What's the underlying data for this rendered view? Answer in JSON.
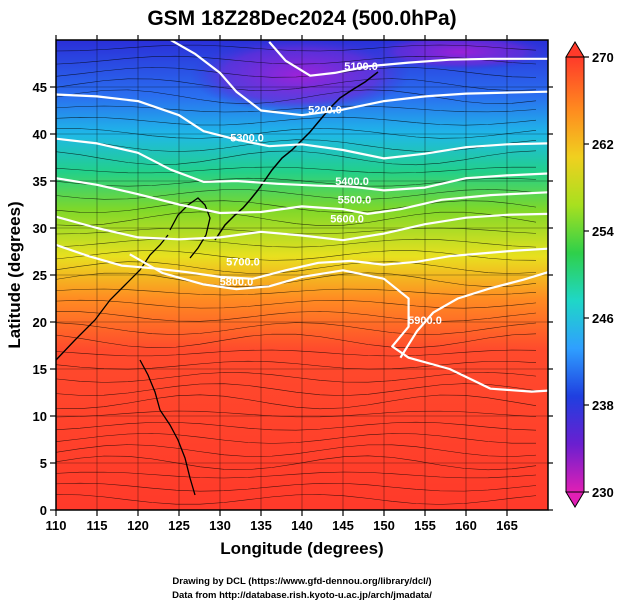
{
  "chart_data": {
    "type": "heatmap",
    "title": "GSM 18Z28Dec2024 (500.0hPa)",
    "xlabel": "Longitude (degrees)",
    "ylabel": "Latitude  (degrees)",
    "xlim": [
      110,
      170
    ],
    "ylim": [
      0,
      50
    ],
    "x_ticks": [
      110,
      115,
      120,
      125,
      130,
      135,
      140,
      145,
      150,
      155,
      160,
      165
    ],
    "y_ticks": [
      0,
      5,
      10,
      15,
      20,
      25,
      30,
      35,
      40,
      45
    ],
    "grid": true,
    "colorbar": {
      "min": 230,
      "max": 270,
      "ticks": [
        230,
        238,
        246,
        254,
        262,
        270
      ],
      "colors": [
        "#e01fb4",
        "#6a1fd0",
        "#1f3fe0",
        "#2f9fff",
        "#1fd7c7",
        "#2fd04a",
        "#a8e01f",
        "#f0d01f",
        "#ff8a1f",
        "#ff3a2a"
      ]
    },
    "contours": [
      {
        "label": "5100.0",
        "points": [
          [
            136,
            49.8
          ],
          [
            138,
            47.8
          ],
          [
            141,
            46.2
          ],
          [
            144,
            46.5
          ],
          [
            148,
            47.2
          ],
          [
            153,
            47.6
          ],
          [
            158,
            47.9
          ],
          [
            163,
            48.0
          ],
          [
            170,
            48.0
          ]
        ]
      },
      {
        "label": "5200.0",
        "points": [
          [
            124,
            50
          ],
          [
            127,
            48.5
          ],
          [
            130,
            46.5
          ],
          [
            132,
            44.5
          ],
          [
            135,
            42.5
          ],
          [
            140,
            42.0
          ],
          [
            145,
            42.6
          ],
          [
            150,
            43.5
          ],
          [
            155,
            44.0
          ],
          [
            160,
            44.3
          ],
          [
            165,
            44.4
          ],
          [
            170,
            44.5
          ]
        ]
      },
      {
        "label": "5300.0",
        "points": [
          [
            110,
            44.2
          ],
          [
            115,
            44.0
          ],
          [
            120,
            43.5
          ],
          [
            125,
            42.0
          ],
          [
            128,
            40.3
          ],
          [
            132,
            39.4
          ],
          [
            136,
            38.7
          ],
          [
            140,
            38.9
          ],
          [
            145,
            38.3
          ],
          [
            150,
            37.4
          ],
          [
            155,
            37.9
          ],
          [
            160,
            38.6
          ],
          [
            165,
            38.9
          ],
          [
            170,
            39.0
          ]
        ]
      },
      {
        "label": "5400.0",
        "points": [
          [
            110,
            39.5
          ],
          [
            115,
            39.0
          ],
          [
            120,
            38.0
          ],
          [
            124,
            36.2
          ],
          [
            128,
            34.9
          ],
          [
            132,
            35.0
          ],
          [
            137,
            34.7
          ],
          [
            142,
            34.5
          ],
          [
            146,
            34.4
          ],
          [
            150,
            34.0
          ],
          [
            155,
            34.3
          ],
          [
            160,
            35.3
          ],
          [
            165,
            35.6
          ],
          [
            170,
            35.8
          ]
        ]
      },
      {
        "label": "5500.0",
        "points": [
          [
            110,
            35.3
          ],
          [
            115,
            34.6
          ],
          [
            120,
            33.6
          ],
          [
            125,
            32.5
          ],
          [
            130,
            31.6
          ],
          [
            135,
            31.7
          ],
          [
            140,
            32.3
          ],
          [
            145,
            32.0
          ],
          [
            148,
            31.5
          ],
          [
            152,
            32.0
          ],
          [
            157,
            33.0
          ],
          [
            163,
            33.5
          ],
          [
            170,
            33.8
          ]
        ]
      },
      {
        "label": "5600.0",
        "points": [
          [
            110,
            31.2
          ],
          [
            115,
            30.0
          ],
          [
            120,
            29.0
          ],
          [
            125,
            28.8
          ],
          [
            130,
            29.0
          ],
          [
            135,
            29.6
          ],
          [
            140,
            29.2
          ],
          [
            145,
            28.7
          ],
          [
            150,
            29.4
          ],
          [
            155,
            30.4
          ],
          [
            160,
            31.1
          ],
          [
            165,
            31.4
          ],
          [
            170,
            31.5
          ]
        ]
      },
      {
        "label": "5700.0",
        "points": [
          [
            110,
            28.2
          ],
          [
            114,
            27.0
          ],
          [
            118,
            26.0
          ],
          [
            122,
            25.7
          ],
          [
            126,
            25.3
          ],
          [
            130,
            24.8
          ],
          [
            134,
            24.6
          ],
          [
            138,
            25.5
          ],
          [
            142,
            26.3
          ],
          [
            146,
            26.5
          ],
          [
            150,
            26.1
          ],
          [
            154,
            26.4
          ],
          [
            158,
            27.0
          ],
          [
            162,
            27.3
          ],
          [
            166,
            27.6
          ],
          [
            170,
            27.8
          ]
        ]
      },
      {
        "label": "5800.0",
        "points": [
          [
            119,
            27.2
          ],
          [
            123,
            25.2
          ],
          [
            128,
            24.0
          ],
          [
            132,
            23.5
          ],
          [
            136,
            23.8
          ],
          [
            140,
            24.8
          ],
          [
            145,
            25.5
          ],
          [
            150,
            24.6
          ],
          [
            153,
            22.5
          ],
          [
            153,
            19.5
          ],
          [
            151,
            17.4
          ],
          [
            153,
            16.2
          ],
          [
            158,
            15.0
          ],
          [
            163,
            12.9
          ],
          [
            168,
            12.6
          ],
          [
            170,
            12.7
          ]
        ]
      },
      {
        "label": "5900.0",
        "points": [
          [
            152,
            16.2
          ],
          [
            154,
            19.0
          ],
          [
            156,
            21.0
          ],
          [
            159,
            22.5
          ],
          [
            163,
            23.6
          ],
          [
            167,
            24.5
          ],
          [
            170,
            25.3
          ]
        ]
      }
    ],
    "contour_label_positions": [
      {
        "label": "5100.0",
        "lon": 147.2,
        "lat": 46.8
      },
      {
        "label": "5200.0",
        "lon": 142.8,
        "lat": 42.2
      },
      {
        "label": "5300.0",
        "lon": 133.3,
        "lat": 39.2
      },
      {
        "label": "5400.0",
        "lon": 146.1,
        "lat": 34.6
      },
      {
        "label": "5500.0",
        "lon": 146.4,
        "lat": 32.6
      },
      {
        "label": "5600.0",
        "lon": 145.5,
        "lat": 30.6
      },
      {
        "label": "5700.0",
        "lon": 132.8,
        "lat": 26.0
      },
      {
        "label": "5800.0",
        "lon": 132.0,
        "lat": 23.9
      },
      {
        "label": "5900.0",
        "lon": 155.0,
        "lat": 19.8
      }
    ]
  },
  "credits": {
    "line1": "Drawing by DCL (https://www.gfd-dennou.org/library/dcl/)",
    "line2": "Data from http://database.rish.kyoto-u.ac.jp/arch/jmadata/"
  }
}
